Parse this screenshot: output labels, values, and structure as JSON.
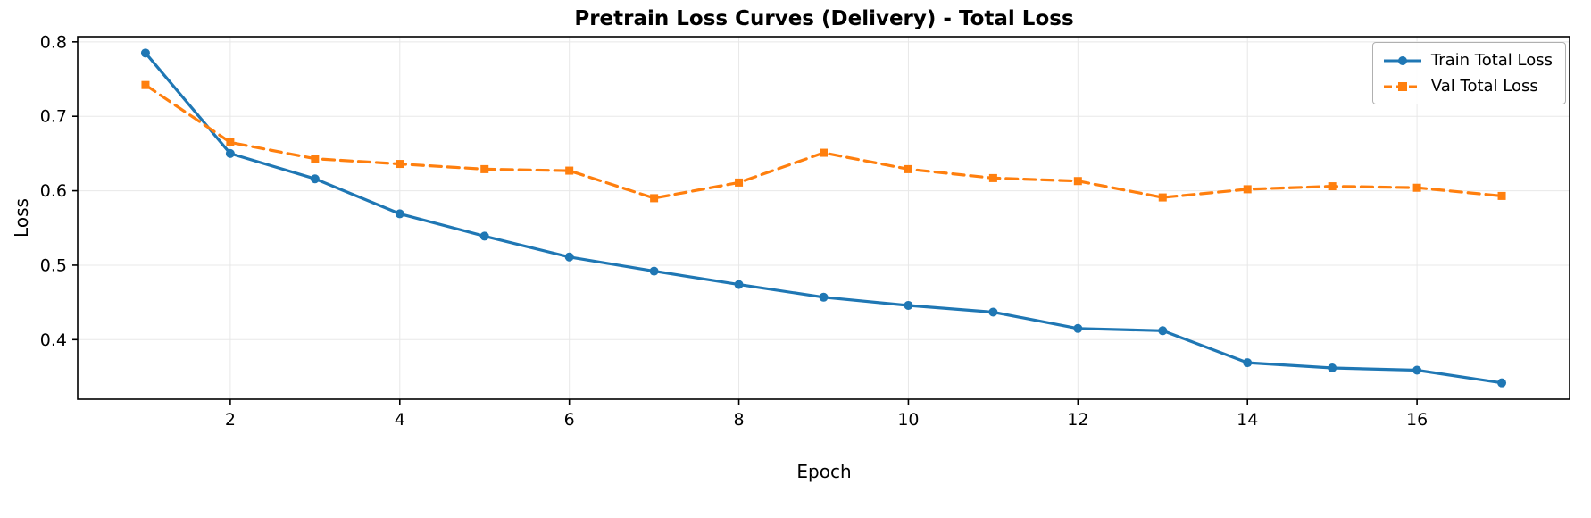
{
  "chart_data": {
    "type": "line",
    "title": "Pretrain Loss Curves (Delivery) - Total Loss",
    "xlabel": "Epoch",
    "ylabel": "Loss",
    "x": [
      1,
      2,
      3,
      4,
      5,
      6,
      7,
      8,
      9,
      10,
      11,
      12,
      13,
      14,
      15,
      16,
      17
    ],
    "series": [
      {
        "name": "Train Total Loss",
        "color": "#1f77b4",
        "marker": "circle",
        "line_style": "solid",
        "dash": "",
        "values": [
          0.785,
          0.65,
          0.616,
          0.569,
          0.539,
          0.511,
          0.492,
          0.474,
          0.457,
          0.446,
          0.437,
          0.415,
          0.412,
          0.369,
          0.362,
          0.359,
          0.342
        ]
      },
      {
        "name": "Val Total Loss",
        "color": "#ff7f0e",
        "marker": "square",
        "line_style": "dashed",
        "dash": "13 7",
        "values": [
          0.742,
          0.665,
          0.643,
          0.636,
          0.629,
          0.627,
          0.59,
          0.611,
          0.651,
          0.629,
          0.617,
          0.613,
          0.591,
          0.602,
          0.606,
          0.604,
          0.593
        ]
      }
    ],
    "xlim": [
      0.2,
      17.8
    ],
    "ylim": [
      0.32,
      0.807
    ],
    "xticks": [
      2,
      4,
      6,
      8,
      10,
      12,
      14,
      16
    ],
    "yticks": [
      0.4,
      0.5,
      0.6,
      0.7,
      0.8
    ],
    "grid": true,
    "legend_position": "upper right",
    "frame_color": "#000000",
    "grid_color": "#e8e8e8"
  }
}
